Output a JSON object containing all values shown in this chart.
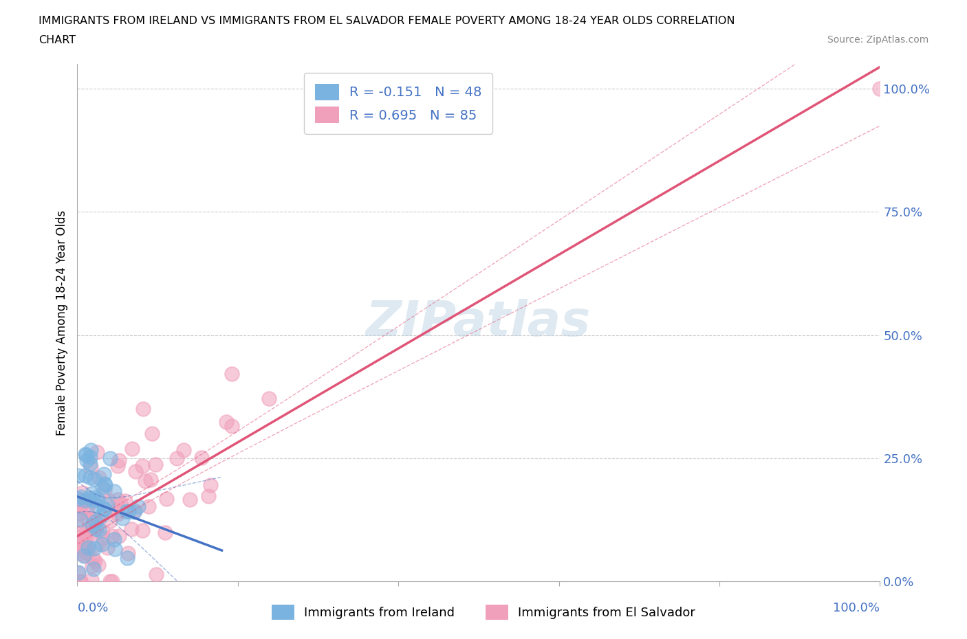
{
  "title_line1": "IMMIGRANTS FROM IRELAND VS IMMIGRANTS FROM EL SALVADOR FEMALE POVERTY AMONG 18-24 YEAR OLDS CORRELATION",
  "title_line2": "CHART",
  "source": "Source: ZipAtlas.com",
  "ylabel": "Female Poverty Among 18-24 Year Olds",
  "ireland_R": -0.151,
  "ireland_N": 48,
  "elsalvador_R": 0.695,
  "elsalvador_N": 85,
  "ireland_color": "#7ab3e0",
  "elsalvador_color": "#f0a0bb",
  "ireland_line_color": "#4472c4",
  "elsalvador_line_color": "#e05577",
  "watermark": "ZIPatlas",
  "xlim": [
    0,
    1
  ],
  "ylim": [
    0,
    1.05
  ],
  "yticks": [
    0.0,
    0.25,
    0.5,
    0.75,
    1.0
  ],
  "ytick_labels": [
    "0.0%",
    "25.0%",
    "50.0%",
    "75.0%",
    "100.0%"
  ],
  "legend_ireland": "Immigrants from Ireland",
  "legend_elsalvador": "Immigrants from El Salvador"
}
